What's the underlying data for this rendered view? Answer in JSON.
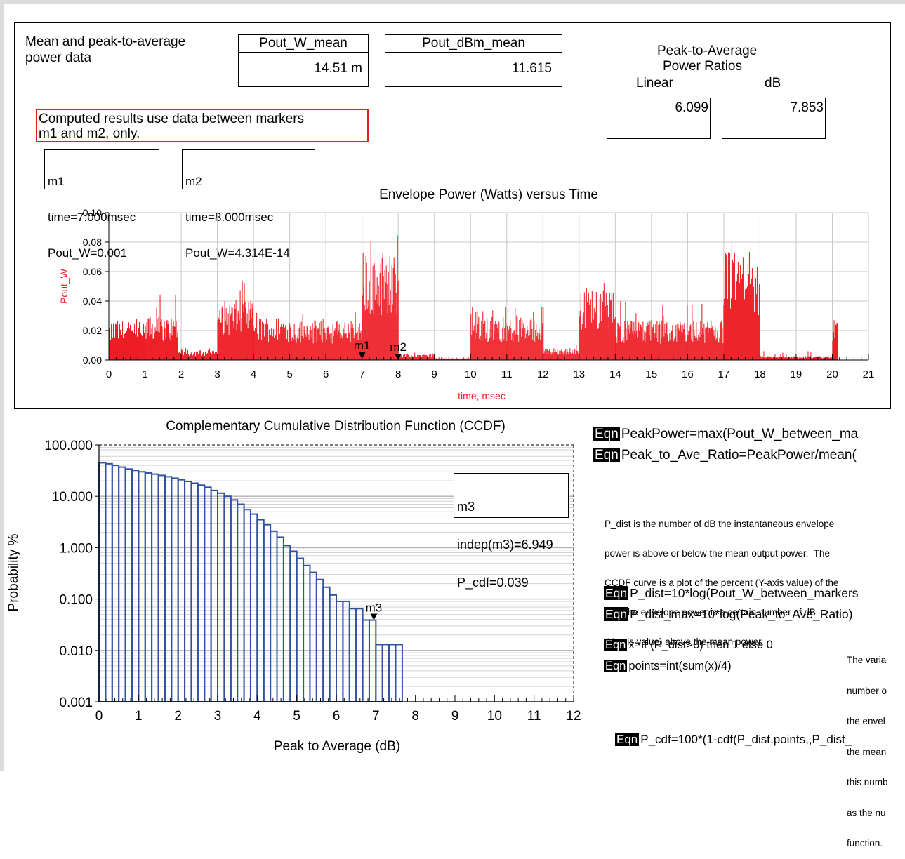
{
  "header": {
    "title_line1": "Mean and peak-to-average",
    "title_line2": "power data",
    "mean_w_label": "Pout_W_mean",
    "mean_w_value": "14.51 m",
    "mean_dbm_label": "Pout_dBm_mean",
    "mean_dbm_value": "11.615",
    "par_title_line1": "Peak-to-Average",
    "par_title_line2": "Power Ratios",
    "linear_label": "Linear",
    "db_label": "dB",
    "linear_value": "6.099",
    "db_value": "7.853",
    "note_line1": "Computed results use data between markers",
    "note_line2": "m1 and m2, only."
  },
  "markers": {
    "m1": {
      "line1": "m1",
      "line2": "time=7.000msec",
      "line3": "Pout_W=0.001"
    },
    "m2": {
      "line1": "m2",
      "line2": "time=8.000msec",
      "line3": "Pout_W=4.314E-14"
    },
    "m3": {
      "line1": "m3",
      "line2": "indep(m3)=6.949",
      "line3": "P_cdf=0.039"
    }
  },
  "equations": {
    "tag": "Eqn",
    "eq1": "PeakPower=max(Pout_W_between_ma",
    "eq2": "Peak_to_Ave_Ratio=PeakPower/mean(",
    "eq3": "P_dist=10*log(Pout_W_between_markers",
    "eq4": "P_dist_max=10*log(Peak_to_Ave_Ratio)",
    "eq5": "x=if (P_dist>0) then 1 else 0",
    "eq6": "points=int(sum(x)/4)",
    "eq7": "P_cdf=100*(1-cdf(P_dist,points,,P_dist_",
    "desc_lines": [
      "P_dist is the number of dB the instantaneous envelope",
      "power is above or below the mean output power.  The",
      "CCDF curve is a plot of the percent (Y-axis value) of the",
      "time the envelope power is a certain number of dB",
      "(X-axis value) above the mean power."
    ],
    "side_lines": [
      "The varia",
      "number o",
      "the envel",
      "the mean",
      "this numb",
      "as the nu",
      "function."
    ]
  },
  "chart_data": [
    {
      "type": "bar",
      "title": "Envelope Power (Watts) versus Time",
      "xlabel": "time, msec",
      "ylabel": "Pout_W",
      "xlim": [
        0,
        21
      ],
      "ylim": [
        0,
        0.1
      ],
      "xticks": [
        "0",
        "1",
        "2",
        "3",
        "4",
        "5",
        "6",
        "7",
        "8",
        "9",
        "10",
        "11",
        "12",
        "13",
        "14",
        "15",
        "16",
        "17",
        "18",
        "19",
        "20",
        "21"
      ],
      "yticks": [
        "0.00",
        "0.02",
        "0.04",
        "0.06",
        "0.08",
        "0.10"
      ],
      "grid": true,
      "color": "#ee1c24",
      "segments": [
        {
          "start": 0.0,
          "end": 1.0,
          "level": 0.02,
          "peak": 0.033
        },
        {
          "start": 1.0,
          "end": 1.9,
          "level": 0.022,
          "peak": 0.044
        },
        {
          "start": 1.9,
          "end": 3.0,
          "level": 0.005,
          "peak": 0.008
        },
        {
          "start": 3.0,
          "end": 4.0,
          "level": 0.03,
          "peak": 0.054
        },
        {
          "start": 4.0,
          "end": 5.0,
          "level": 0.022,
          "peak": 0.035
        },
        {
          "start": 5.0,
          "end": 7.0,
          "level": 0.02,
          "peak": 0.033
        },
        {
          "start": 7.0,
          "end": 8.0,
          "level": 0.055,
          "peak": 0.089
        },
        {
          "start": 8.0,
          "end": 9.0,
          "level": 0.003,
          "peak": 0.005
        },
        {
          "start": 9.0,
          "end": 10.0,
          "level": 0.001,
          "peak": 0.002
        },
        {
          "start": 10.0,
          "end": 12.0,
          "level": 0.022,
          "peak": 0.036
        },
        {
          "start": 12.0,
          "end": 13.0,
          "level": 0.006,
          "peak": 0.01
        },
        {
          "start": 13.0,
          "end": 14.0,
          "level": 0.035,
          "peak": 0.054
        },
        {
          "start": 14.0,
          "end": 17.0,
          "level": 0.02,
          "peak": 0.04
        },
        {
          "start": 17.0,
          "end": 18.0,
          "level": 0.055,
          "peak": 0.08
        },
        {
          "start": 18.0,
          "end": 20.0,
          "level": 0.002,
          "peak": 0.006
        },
        {
          "start": 20.0,
          "end": 20.15,
          "level": 0.022,
          "peak": 0.027
        }
      ],
      "markers": [
        {
          "name": "m1",
          "x": 7.0,
          "y": 0.001
        },
        {
          "name": "m2",
          "x": 8.0,
          "y": 0.0
        }
      ]
    },
    {
      "type": "bar",
      "title": "Complementary Cumulative Distribution Function (CCDF)",
      "xlabel": "Peak to Average (dB)",
      "ylabel": "Probability %",
      "xlim": [
        0,
        12
      ],
      "ylim": [
        0.001,
        100
      ],
      "yscale": "log",
      "xticks": [
        "0",
        "1",
        "2",
        "3",
        "4",
        "5",
        "6",
        "7",
        "8",
        "9",
        "10",
        "11",
        "12"
      ],
      "yticks": [
        "0.001",
        "0.010",
        "0.100",
        "1.000",
        "10.000",
        "100.000"
      ],
      "grid": true,
      "color": "#3050a0",
      "x": [
        0.0,
        0.167,
        0.333,
        0.5,
        0.667,
        0.833,
        1.0,
        1.167,
        1.333,
        1.5,
        1.667,
        1.833,
        2.0,
        2.167,
        2.333,
        2.5,
        2.667,
        2.833,
        3.0,
        3.167,
        3.333,
        3.5,
        3.667,
        3.833,
        4.0,
        4.167,
        4.333,
        4.5,
        4.667,
        4.833,
        5.0,
        5.167,
        5.333,
        5.5,
        5.667,
        5.833,
        6.0,
        6.167,
        6.333,
        6.5,
        6.667,
        6.833,
        7.0,
        7.167,
        7.333,
        7.5
      ],
      "values": [
        45,
        43,
        40,
        37,
        34,
        32,
        30,
        28.5,
        27,
        25.5,
        24,
        22.5,
        21,
        19.5,
        18,
        16.5,
        15,
        13,
        11.5,
        10,
        8.5,
        7,
        5.5,
        4.5,
        3.5,
        2.8,
        2.1,
        1.6,
        1.1,
        0.85,
        0.62,
        0.45,
        0.33,
        0.24,
        0.17,
        0.12,
        0.09,
        0.09,
        0.065,
        0.065,
        0.039,
        0.039,
        0.013,
        0.013,
        0.013,
        0.013
      ],
      "markers": [
        {
          "name": "m3",
          "x": 6.949,
          "y": 0.039
        }
      ]
    }
  ]
}
